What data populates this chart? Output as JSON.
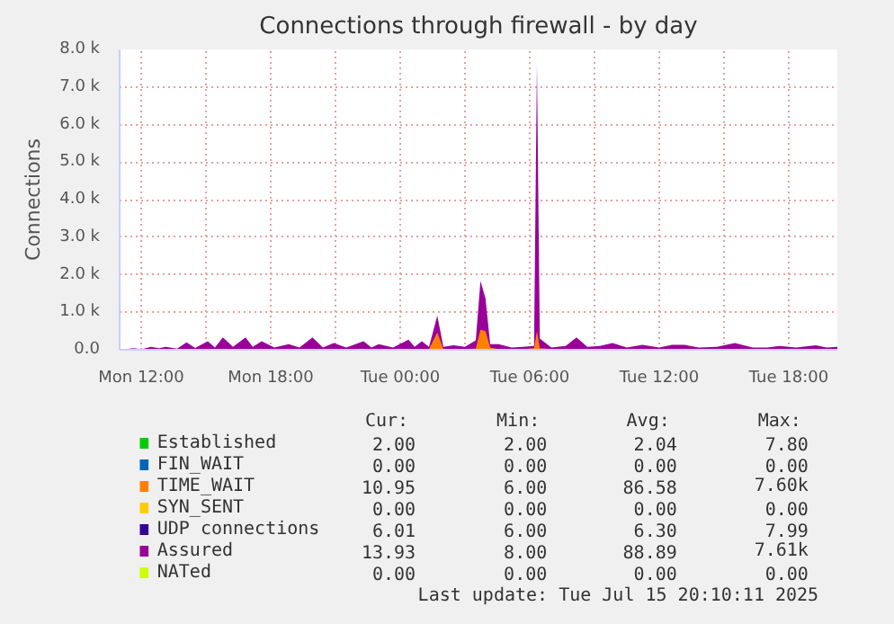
{
  "chart_data": {
    "type": "area",
    "title": "Connections through firewall - by day",
    "ylabel": "Connections",
    "x": [
      "2025-07-14T11:00",
      "2025-07-14T11:40",
      "2025-07-14T12:00",
      "2025-07-14T12:27",
      "2025-07-14T12:50",
      "2025-07-14T13:08",
      "2025-07-14T13:40",
      "2025-07-14T14:06",
      "2025-07-14T14:30",
      "2025-07-14T15:05",
      "2025-07-14T15:25",
      "2025-07-14T15:47",
      "2025-07-14T16:15",
      "2025-07-14T16:50",
      "2025-07-14T17:10",
      "2025-07-14T17:35",
      "2025-07-14T18:10",
      "2025-07-14T18:50",
      "2025-07-14T19:20",
      "2025-07-14T19:56",
      "2025-07-14T20:25",
      "2025-07-14T20:55",
      "2025-07-14T21:30",
      "2025-07-14T22:18",
      "2025-07-14T22:40",
      "2025-07-14T23:00",
      "2025-07-14T23:40",
      "2025-07-15T00:23",
      "2025-07-15T00:40",
      "2025-07-15T01:00",
      "2025-07-15T01:20",
      "2025-07-15T01:43",
      "2025-07-15T02:00",
      "2025-07-15T02:28",
      "2025-07-15T03:00",
      "2025-07-15T03:30",
      "2025-07-15T03:43",
      "2025-07-15T03:57",
      "2025-07-15T04:10",
      "2025-07-15T04:33",
      "2025-07-15T05:10",
      "2025-07-15T05:40",
      "2025-07-15T06:12",
      "2025-07-15T06:20",
      "2025-07-15T06:28",
      "2025-07-15T07:00",
      "2025-07-15T07:40",
      "2025-07-15T08:10",
      "2025-07-15T08:40",
      "2025-07-15T09:15",
      "2025-07-15T09:50",
      "2025-07-15T10:30",
      "2025-07-15T11:13",
      "2025-07-15T12:00",
      "2025-07-15T12:35",
      "2025-07-15T13:10",
      "2025-07-15T13:50",
      "2025-07-15T14:40",
      "2025-07-15T15:30",
      "2025-07-15T16:20",
      "2025-07-15T17:00",
      "2025-07-15T17:35",
      "2025-07-15T18:20",
      "2025-07-15T19:15",
      "2025-07-15T19:45",
      "2025-07-15T20:15"
    ],
    "series": [
      {
        "name": "Established",
        "color": "#00cc00",
        "values": [
          null,
          null,
          null,
          null,
          null,
          null,
          null,
          null,
          null,
          null,
          null,
          null,
          null,
          null,
          null,
          null,
          null,
          null,
          null,
          null,
          null,
          null,
          null,
          null,
          null,
          null,
          null,
          null,
          null,
          null,
          null,
          null,
          null,
          null,
          null,
          null,
          null,
          null,
          null,
          null,
          null,
          null,
          null,
          null,
          null,
          null,
          null,
          null,
          null,
          null,
          null,
          null,
          null,
          null,
          null,
          null,
          null,
          null,
          null,
          null,
          null,
          null,
          null,
          null,
          null,
          null
        ]
      },
      {
        "name": "FIN_WAIT",
        "color": "#0066b3",
        "values": [
          null,
          null,
          null,
          null,
          null,
          null,
          null,
          null,
          null,
          null,
          null,
          null,
          null,
          null,
          null,
          null,
          null,
          null,
          null,
          null,
          null,
          null,
          null,
          null,
          null,
          null,
          null,
          null,
          null,
          null,
          null,
          null,
          null,
          null,
          null,
          null,
          null,
          null,
          null,
          null,
          null,
          null,
          null,
          null,
          null,
          null,
          null,
          null,
          null,
          null,
          null,
          null,
          null,
          null,
          null,
          null,
          null,
          null,
          null,
          null,
          null,
          null,
          null,
          null,
          null,
          null
        ]
      },
      {
        "name": "TIME_WAIT",
        "color": "#ff8000",
        "values": [
          20,
          20,
          20,
          20,
          20,
          20,
          20,
          20,
          20,
          20,
          20,
          20,
          20,
          20,
          20,
          20,
          20,
          20,
          20,
          20,
          20,
          20,
          20,
          20,
          20,
          20,
          20,
          20,
          20,
          20,
          20,
          460,
          20,
          20,
          20,
          30,
          530,
          500,
          60,
          20,
          20,
          20,
          40,
          500,
          40,
          20,
          20,
          20,
          20,
          20,
          20,
          20,
          20,
          20,
          20,
          20,
          20,
          20,
          20,
          20,
          20,
          20,
          20,
          20,
          20,
          20
        ]
      },
      {
        "name": "SYN_SENT",
        "color": "#ffcc00",
        "values": [
          null,
          null,
          null,
          null,
          null,
          null,
          null,
          null,
          null,
          null,
          null,
          null,
          null,
          null,
          null,
          null,
          null,
          null,
          null,
          null,
          null,
          null,
          null,
          null,
          null,
          null,
          null,
          null,
          null,
          null,
          null,
          null,
          null,
          null,
          null,
          null,
          null,
          null,
          null,
          null,
          null,
          null,
          null,
          null,
          null,
          null,
          null,
          null,
          null,
          null,
          null,
          null,
          null,
          null,
          null,
          null,
          null,
          null,
          null,
          null,
          null,
          null,
          null,
          null,
          null,
          null
        ]
      },
      {
        "name": "UDP connections",
        "color": "#330099",
        "values": [
          null,
          null,
          null,
          null,
          null,
          null,
          null,
          null,
          null,
          null,
          null,
          null,
          null,
          null,
          null,
          null,
          null,
          null,
          null,
          null,
          null,
          null,
          null,
          null,
          null,
          null,
          null,
          null,
          null,
          null,
          null,
          null,
          null,
          null,
          null,
          null,
          null,
          null,
          null,
          null,
          null,
          null,
          null,
          null,
          null,
          null,
          null,
          null,
          null,
          null,
          null,
          null,
          null,
          null,
          null,
          null,
          null,
          null,
          null,
          null,
          null,
          null,
          null,
          null,
          null,
          null
        ]
      },
      {
        "name": "Assured",
        "color": "#990099",
        "values": [
          0,
          40,
          10,
          80,
          40,
          80,
          30,
          200,
          50,
          230,
          60,
          330,
          80,
          330,
          80,
          230,
          60,
          150,
          60,
          330,
          60,
          180,
          60,
          230,
          60,
          150,
          60,
          270,
          80,
          230,
          80,
          910,
          80,
          120,
          80,
          250,
          1830,
          1370,
          150,
          150,
          60,
          80,
          100,
          7610,
          300,
          60,
          100,
          330,
          80,
          100,
          180,
          60,
          130,
          60,
          130,
          130,
          60,
          80,
          180,
          60,
          60,
          100,
          60,
          120,
          60,
          80
        ]
      },
      {
        "name": "NATed",
        "color": "#ccff00",
        "values": [
          null,
          null,
          null,
          null,
          null,
          null,
          null,
          null,
          null,
          null,
          null,
          null,
          null,
          null,
          null,
          null,
          null,
          null,
          null,
          null,
          null,
          null,
          null,
          null,
          null,
          null,
          null,
          null,
          null,
          null,
          null,
          null,
          null,
          null,
          null,
          null,
          null,
          null,
          null,
          null,
          null,
          null,
          null,
          null,
          null,
          null,
          null,
          null,
          null,
          null,
          null,
          null,
          null,
          null,
          null,
          null,
          null,
          null,
          null,
          null,
          null,
          null,
          null,
          null,
          null,
          null
        ]
      }
    ],
    "xlim": [
      "2025-07-14T11:00",
      "2025-07-15T20:15"
    ],
    "xticks": [
      {
        "value": "2025-07-14T12:00",
        "label": "Mon 12:00"
      },
      {
        "value": "2025-07-14T15:00",
        "label": null
      },
      {
        "value": "2025-07-14T18:00",
        "label": "Mon 18:00"
      },
      {
        "value": "2025-07-14T21:00",
        "label": null
      },
      {
        "value": "2025-07-15T00:00",
        "label": "Tue 00:00"
      },
      {
        "value": "2025-07-15T03:00",
        "label": null
      },
      {
        "value": "2025-07-15T06:00",
        "label": "Tue 06:00"
      },
      {
        "value": "2025-07-15T09:00",
        "label": null
      },
      {
        "value": "2025-07-15T12:00",
        "label": "Tue 12:00"
      },
      {
        "value": "2025-07-15T15:00",
        "label": null
      },
      {
        "value": "2025-07-15T18:00",
        "label": "Tue 18:00"
      }
    ],
    "ylim": [
      0,
      8000
    ],
    "yticks": [
      {
        "value": 0,
        "label": "0.0"
      },
      {
        "value": 1000,
        "label": "1.0 k"
      },
      {
        "value": 2000,
        "label": "2.0 k"
      },
      {
        "value": 3000,
        "label": "3.0 k"
      },
      {
        "value": 4000,
        "label": "4.0 k"
      },
      {
        "value": 5000,
        "label": "5.0 k"
      },
      {
        "value": 6000,
        "label": "6.0 k"
      },
      {
        "value": 7000,
        "label": "7.0 k"
      },
      {
        "value": 8000,
        "label": "8.0 k"
      }
    ],
    "grid": true,
    "legend": "bottom",
    "annotations": [
      "Cur:",
      "Min:",
      "Avg:",
      "Max:",
      "2.00",
      "2.00",
      "2.04",
      "7.80",
      "0.00",
      "0.00",
      "0.00",
      "0.00",
      "10.95",
      "6.00",
      "86.58",
      "7.60k",
      "0.00",
      "0.00",
      "0.00",
      "0.00",
      "6.01",
      "6.00",
      "6.30",
      "7.99",
      "13.93",
      "8.00",
      "88.89",
      "7.61k",
      "0.00",
      "0.00",
      "0.00",
      "0.00",
      "Last update: Tue Jul 15 20:10:11 2025"
    ]
  }
}
